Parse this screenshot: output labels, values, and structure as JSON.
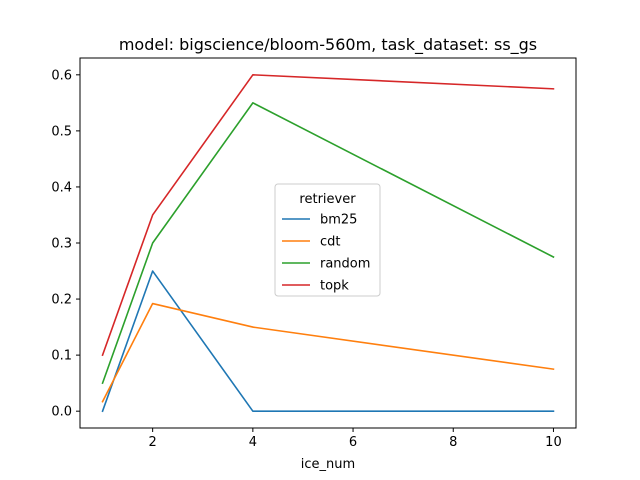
{
  "chart_data": {
    "type": "line",
    "title": "model: bigscience/bloom-560m, task_dataset: ss_gs",
    "xlabel": "ice_num",
    "ylabel": "",
    "x": [
      1,
      2,
      4,
      10
    ],
    "xlim": [
      0.55,
      10.45
    ],
    "ylim": [
      -0.03,
      0.63
    ],
    "xticks": [
      2,
      4,
      6,
      8,
      10
    ],
    "yticks": [
      0.0,
      0.1,
      0.2,
      0.3,
      0.4,
      0.5,
      0.6
    ],
    "ytick_labels": [
      "0.0",
      "0.1",
      "0.2",
      "0.3",
      "0.4",
      "0.5",
      "0.6"
    ],
    "grid": false,
    "legend": {
      "title": "retriever",
      "placement": "center"
    },
    "series": [
      {
        "name": "bm25",
        "color": "#1f77b4",
        "values": [
          0.0,
          0.25,
          0.0,
          0.0
        ]
      },
      {
        "name": "cdt",
        "color": "#ff7f0e",
        "values": [
          0.017,
          0.192,
          0.15,
          0.075
        ]
      },
      {
        "name": "random",
        "color": "#2ca02c",
        "values": [
          0.05,
          0.3,
          0.55,
          0.275
        ]
      },
      {
        "name": "topk",
        "color": "#d62728",
        "values": [
          0.1,
          0.35,
          0.6,
          0.575
        ]
      }
    ]
  }
}
